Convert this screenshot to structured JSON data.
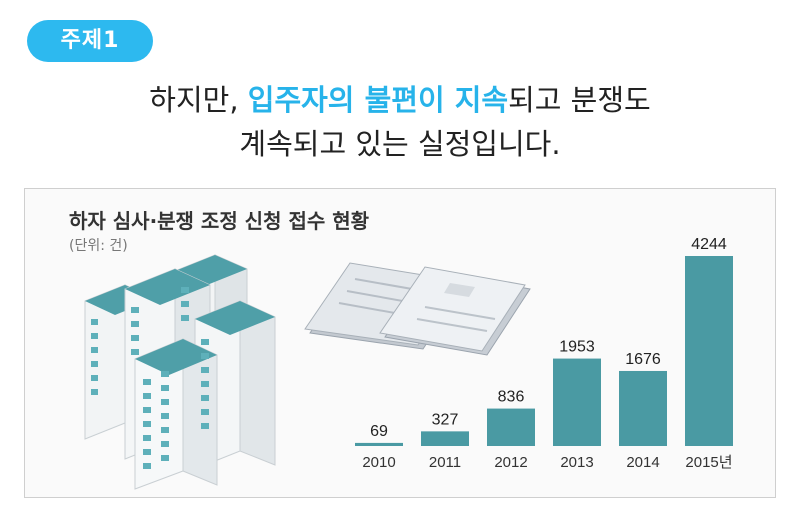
{
  "badge": "주제1",
  "headline": {
    "line1_pre": "하지만, ",
    "line1_highlight": "입주자의 불편이 지속",
    "line1_post": "되고 분쟁도",
    "line2": "계속되고 있는 실정입니다."
  },
  "colors": {
    "accent": "#2db9ef",
    "bar": "#4a9aa3",
    "highlight": "#27b3ea"
  },
  "chart_data": {
    "type": "bar",
    "title": "하자 심사·분쟁 조정 신청 접수 현황",
    "unit": "(단위: 건)",
    "categories": [
      "2010",
      "2011",
      "2012",
      "2013",
      "2014",
      "2015년"
    ],
    "values": [
      69,
      327,
      836,
      1953,
      1676,
      4244
    ],
    "ylim": [
      0,
      4244
    ],
    "grid": false,
    "legend": "none"
  },
  "illustration": {
    "buildings": "apartment-buildings-icon",
    "papers": "documents-icon"
  }
}
